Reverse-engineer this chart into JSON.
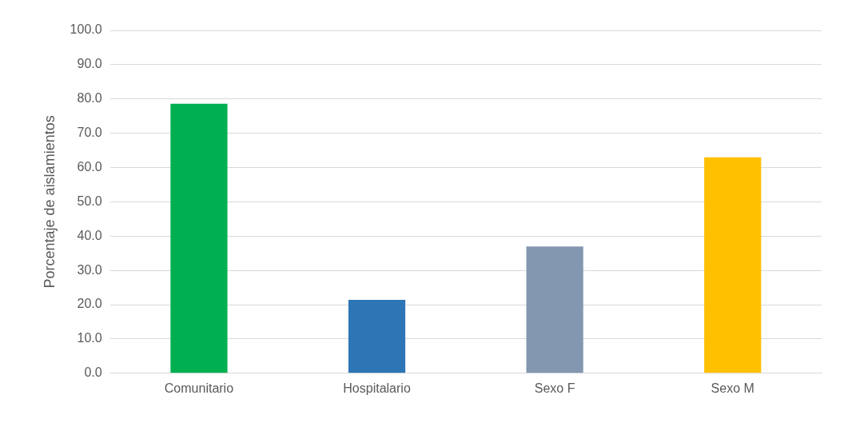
{
  "chart_data": {
    "type": "bar",
    "ylabel": "Porcentaje de aislamientos",
    "categories": [
      "Comunitario",
      "Hospitalario",
      "Sexo F",
      "Sexo M"
    ],
    "values": [
      78.6,
      21.4,
      37.0,
      63.0
    ],
    "colors": [
      "#00b050",
      "#2e75b6",
      "#8497b0",
      "#ffc000"
    ],
    "ylim": [
      0,
      100
    ],
    "yticks": [
      {
        "value": 0,
        "label": "0.0"
      },
      {
        "value": 10,
        "label": "10.0"
      },
      {
        "value": 20,
        "label": "20.0"
      },
      {
        "value": 30,
        "label": "30.0"
      },
      {
        "value": 40,
        "label": "40.0"
      },
      {
        "value": 50,
        "label": "50.0"
      },
      {
        "value": 60,
        "label": "60.0"
      },
      {
        "value": 70,
        "label": "70.0"
      },
      {
        "value": 80,
        "label": "80.0"
      },
      {
        "value": 90,
        "label": "90.0"
      },
      {
        "value": 100,
        "label": "100.0"
      }
    ],
    "grid": "y",
    "legend": false
  }
}
